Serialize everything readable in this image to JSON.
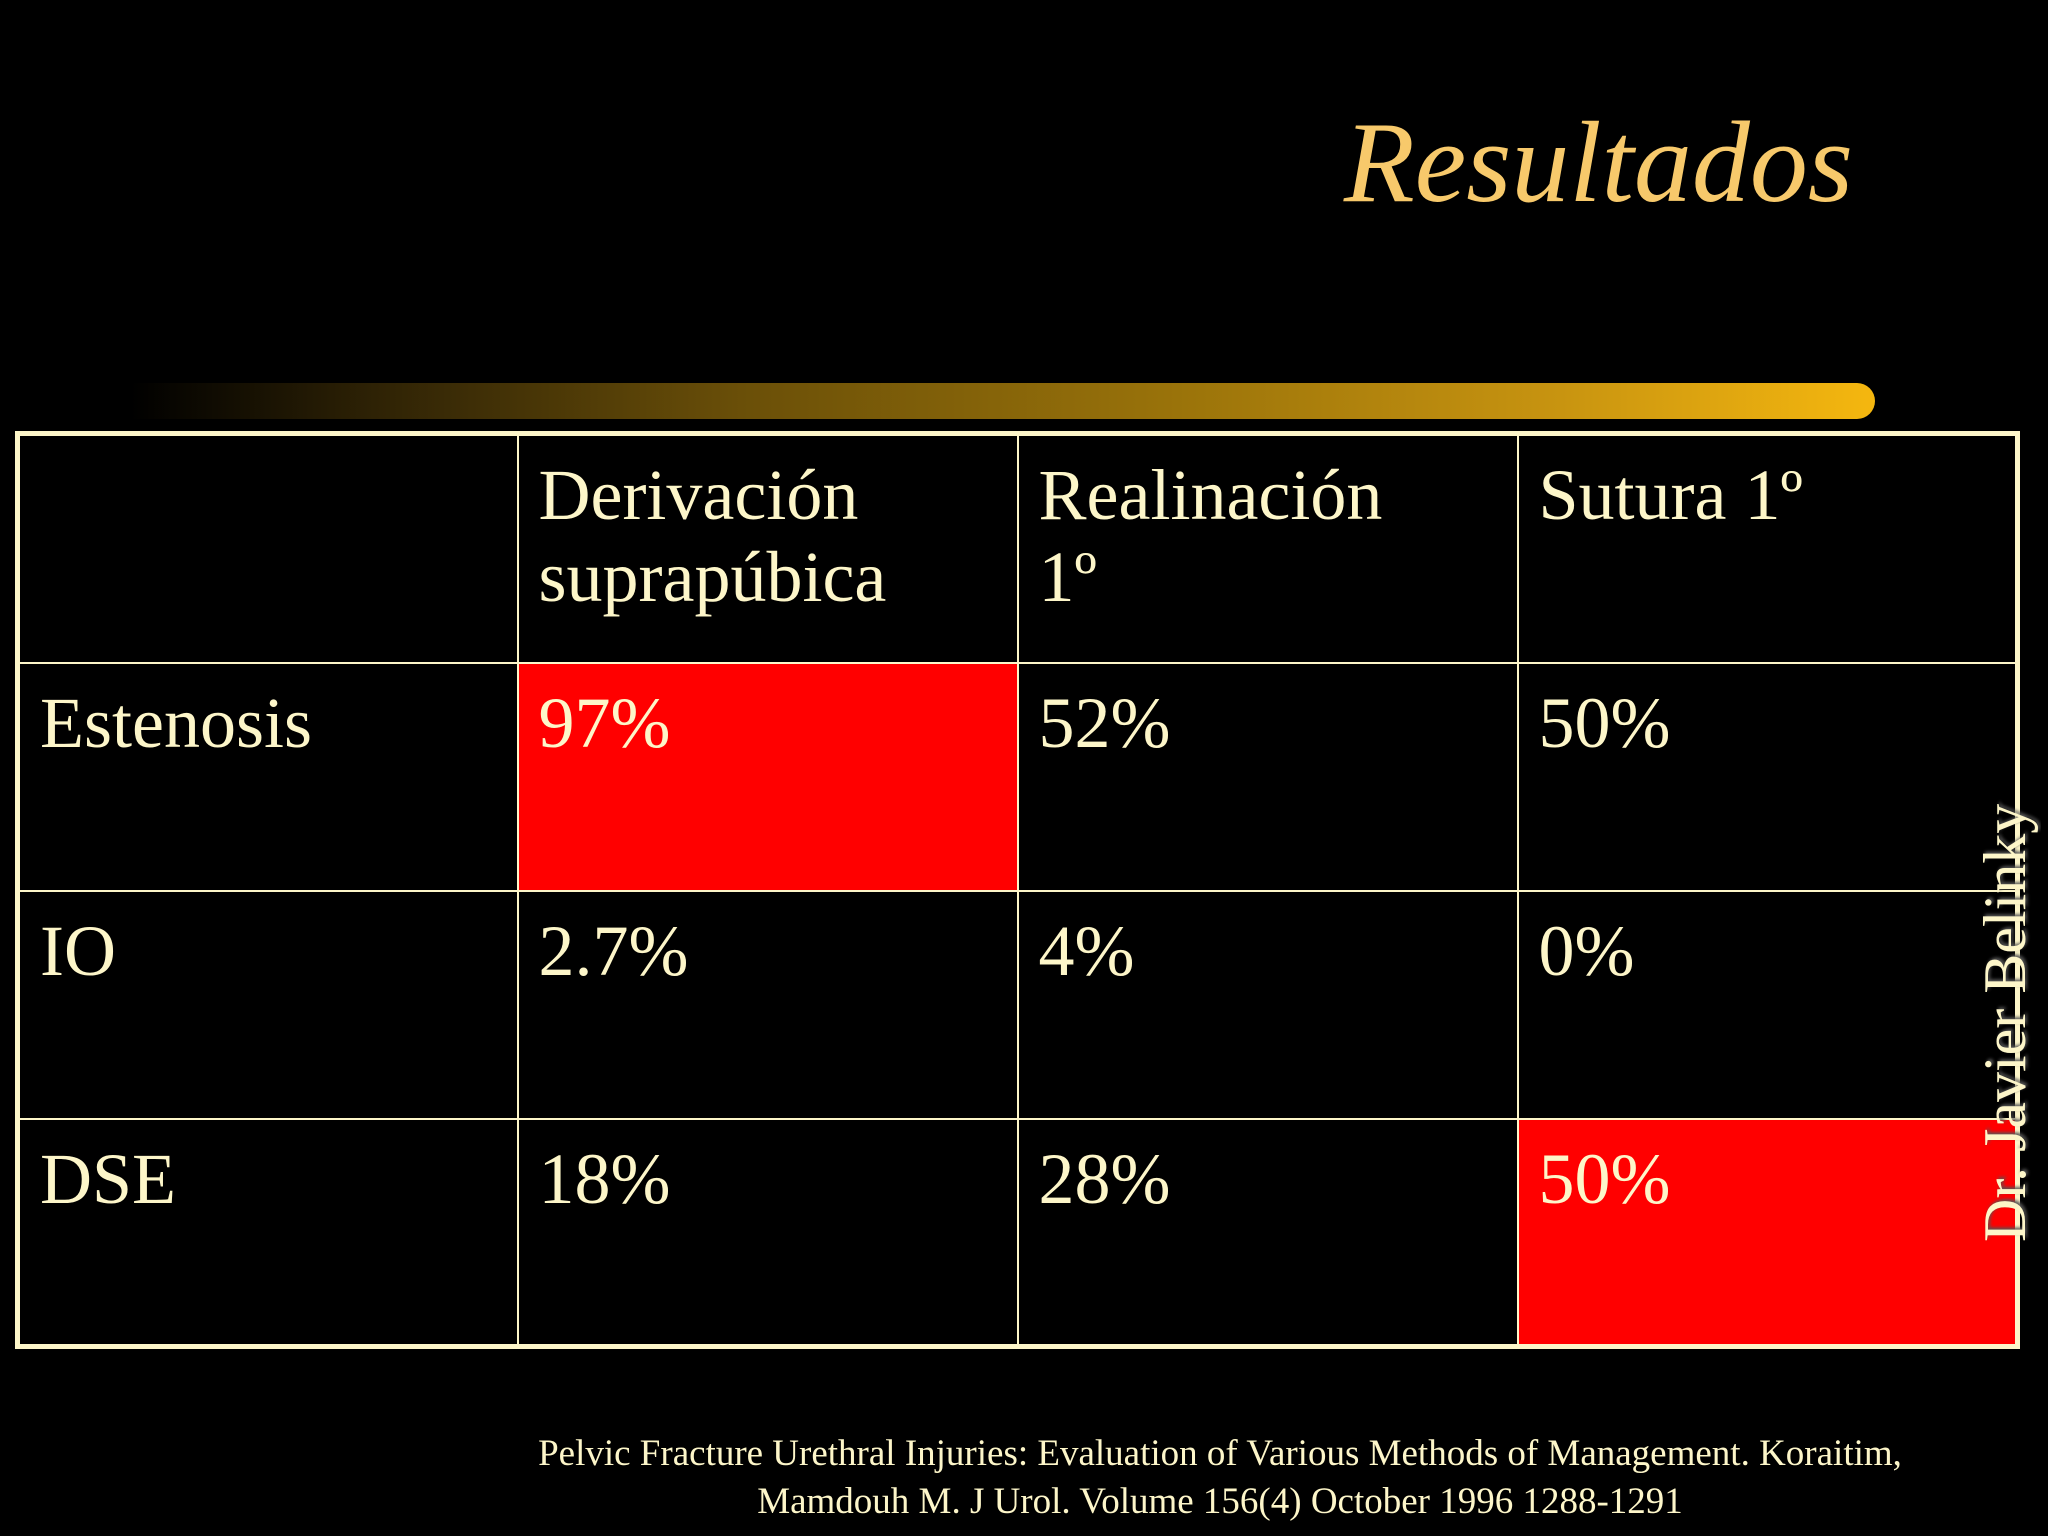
{
  "slide": {
    "title": "Resultados",
    "vertical_label": "Dr. Javier Belinky",
    "citation": {
      "line1": "Pelvic Fracture Urethral Injuries: Evaluation of Various Methods of Management. Koraitim,",
      "line2": "Mamdouh M. J Urol. Volume 156(4) October 1996 1288-1291"
    },
    "colors": {
      "background": "#000000",
      "title": "#f7c96b",
      "text": "#fdf6c9",
      "highlight": "#ff0000"
    }
  },
  "table": {
    "headers": [
      {
        "line1": "",
        "line2": ""
      },
      {
        "line1": "Derivación",
        "line2": "suprapúbica"
      },
      {
        "line1": "Realinación",
        "line2": "1º"
      },
      {
        "line1": "Sutura 1º",
        "line2": ""
      }
    ],
    "rows": [
      {
        "label": "Estenosis",
        "values": [
          "97%",
          "52%",
          "50%"
        ]
      },
      {
        "label": "IO",
        "values": [
          "2.7%",
          "4%",
          "0%"
        ]
      },
      {
        "label": "DSE",
        "values": [
          "18%",
          "28%",
          "50%"
        ]
      }
    ],
    "highlighted_cells": [
      {
        "row": 0,
        "col": 0
      },
      {
        "row": 2,
        "col": 2
      }
    ]
  }
}
